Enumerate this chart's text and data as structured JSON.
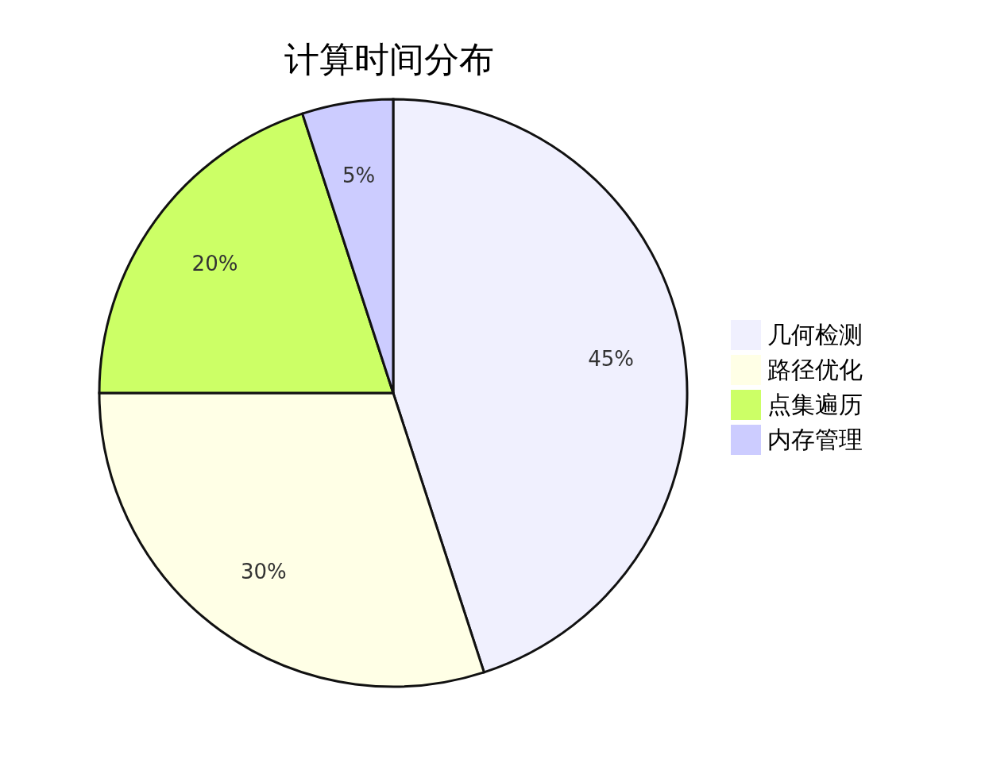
{
  "chart_data": {
    "type": "pie",
    "title": "计算时间分布",
    "categories": [
      "几何检测",
      "路径优化",
      "点集遍历",
      "内存管理"
    ],
    "values": [
      45,
      30,
      20,
      5
    ],
    "colors": [
      "#f0f0fe",
      "#ffffe6",
      "#ccff66",
      "#ccccff"
    ],
    "value_labels": [
      "45%",
      "30%",
      "20%",
      "5%"
    ],
    "legend": "right"
  }
}
